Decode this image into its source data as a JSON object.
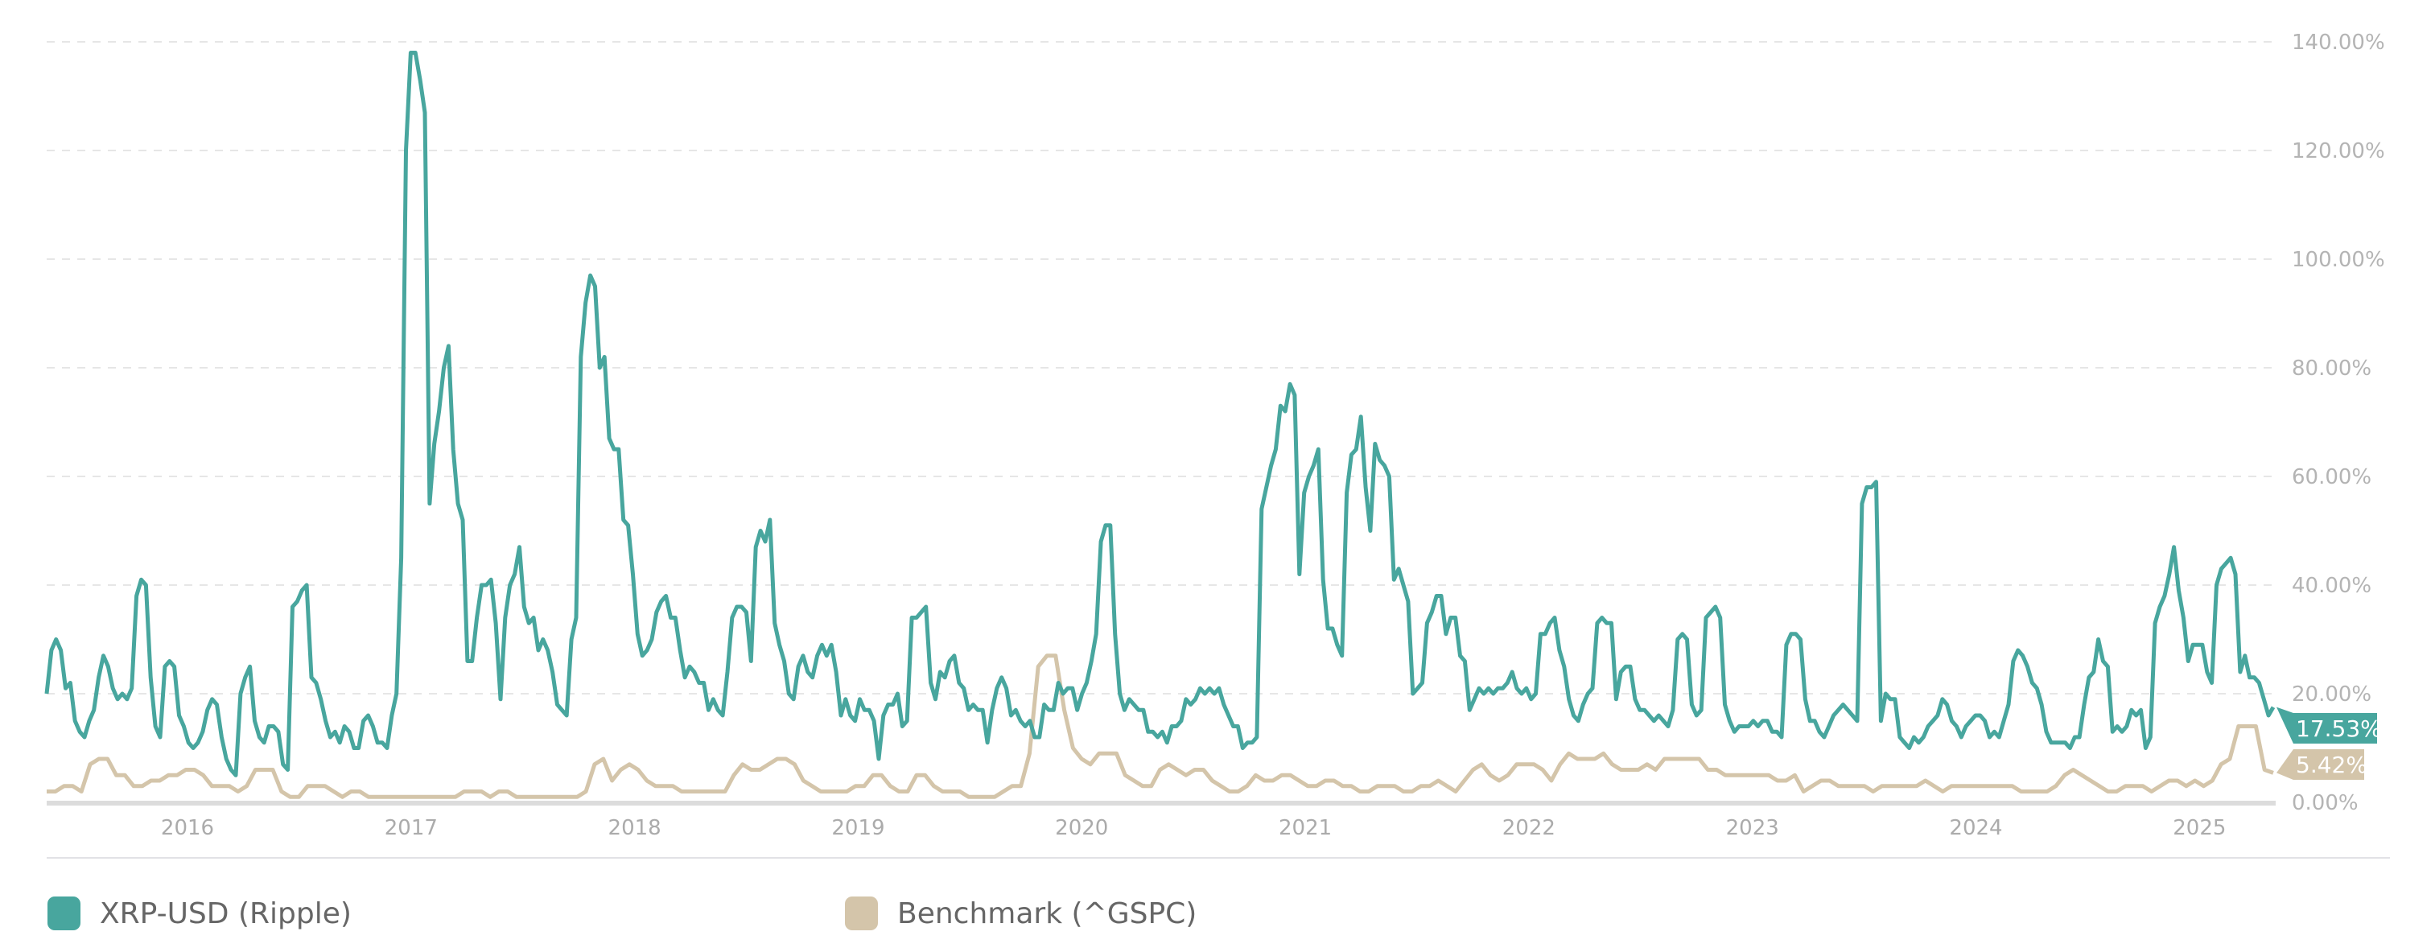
{
  "chart_data": {
    "type": "line",
    "title": "",
    "xlabel": "",
    "ylabel": "",
    "x_range": [
      2015.37,
      2025.33
    ],
    "ylim": [
      0,
      140
    ],
    "y_ticks": [
      "0.00%",
      "20.00%",
      "40.00%",
      "60.00%",
      "80.00%",
      "100.00%",
      "120.00%",
      "140.00%"
    ],
    "y_tick_values": [
      0,
      20,
      40,
      60,
      80,
      100,
      120,
      140
    ],
    "x_ticks": [
      "2016",
      "2017",
      "2018",
      "2019",
      "2020",
      "2021",
      "2022",
      "2023",
      "2024",
      "2025"
    ],
    "x_tick_values": [
      2016,
      2017,
      2018,
      2019,
      2020,
      2021,
      2022,
      2023,
      2024,
      2025
    ],
    "grid": "horizontal dashed",
    "legend_position": "bottom",
    "series": [
      {
        "name": "XRP-USD (Ripple)",
        "color": "#48a69e",
        "last_value_label": "17.53%",
        "values": [
          20,
          28,
          30,
          28,
          21,
          22,
          15,
          13,
          12,
          15,
          17,
          23,
          27,
          25,
          21,
          19,
          20,
          19,
          21,
          38,
          41,
          40,
          23,
          14,
          12,
          25,
          26,
          25,
          16,
          14,
          11,
          10,
          11,
          13,
          17,
          19,
          18,
          12,
          8,
          6,
          5,
          20,
          23,
          25,
          15,
          12,
          11,
          14,
          14,
          13,
          7,
          6,
          36,
          37,
          39,
          40,
          23,
          22,
          19,
          15,
          12,
          13,
          11,
          14,
          13,
          10,
          10,
          15,
          16,
          14,
          11,
          11,
          10,
          16,
          20,
          45,
          120,
          138,
          138,
          133,
          127,
          55,
          66,
          72,
          80,
          84,
          65,
          55,
          52,
          26,
          26,
          34,
          40,
          40,
          41,
          33,
          19,
          34,
          40,
          42,
          47,
          36,
          33,
          34,
          28,
          30,
          28,
          24,
          18,
          17,
          16,
          30,
          34,
          82,
          92,
          97,
          95,
          80,
          82,
          67,
          65,
          65,
          52,
          51,
          42,
          31,
          27,
          28,
          30,
          35,
          37,
          38,
          34,
          34,
          28,
          23,
          25,
          24,
          22,
          22,
          17,
          19,
          17,
          16,
          24,
          34,
          36,
          36,
          35,
          26,
          47,
          50,
          48,
          52,
          33,
          29,
          26,
          20,
          19,
          25,
          27,
          24,
          23,
          27,
          29,
          27,
          29,
          24,
          16,
          19,
          16,
          15,
          19,
          17,
          17,
          15,
          8,
          16,
          18,
          18,
          20,
          14,
          15,
          34,
          34,
          35,
          36,
          22,
          19,
          24,
          23,
          26,
          27,
          22,
          21,
          17,
          18,
          17,
          17,
          11,
          17,
          21,
          23,
          21,
          16,
          17,
          15,
          14,
          15,
          12,
          12,
          18,
          17,
          17,
          22,
          20,
          21,
          21,
          17,
          20,
          22,
          26,
          31,
          48,
          51,
          51,
          31,
          20,
          17,
          19,
          18,
          17,
          17,
          13,
          13,
          12,
          13,
          11,
          14,
          14,
          15,
          19,
          18,
          19,
          21,
          20,
          21,
          20,
          21,
          18,
          16,
          14,
          14,
          10,
          11,
          11,
          12,
          54,
          58,
          62,
          65,
          73,
          72,
          77,
          75,
          42,
          57,
          60,
          62,
          65,
          41,
          32,
          32,
          29,
          27,
          57,
          64,
          65,
          71,
          58,
          50,
          66,
          63,
          62,
          60,
          41,
          43,
          40,
          37,
          20,
          21,
          22,
          33,
          35,
          38,
          38,
          31,
          34,
          34,
          27,
          26,
          17,
          19,
          21,
          20,
          21,
          20,
          21,
          21,
          22,
          24,
          21,
          20,
          21,
          19,
          20,
          31,
          31,
          33,
          34,
          28,
          25,
          19,
          16,
          15,
          18,
          20,
          21,
          33,
          34,
          33,
          33,
          19,
          24,
          25,
          25,
          19,
          17,
          17,
          16,
          15,
          16,
          15,
          14,
          17,
          30,
          31,
          30,
          18,
          16,
          17,
          34,
          35,
          36,
          34,
          18,
          15,
          13,
          14,
          14,
          14,
          15,
          14,
          15,
          15,
          13,
          13,
          12,
          29,
          31,
          31,
          30,
          19,
          15,
          15,
          13,
          12,
          14,
          16,
          17,
          18,
          17,
          16,
          15,
          55,
          58,
          58,
          59,
          15,
          20,
          19,
          19,
          12,
          11,
          10,
          12,
          11,
          12,
          14,
          15,
          16,
          19,
          18,
          15,
          14,
          12,
          14,
          15,
          16,
          16,
          15,
          12,
          13,
          12,
          15,
          18,
          26,
          28,
          27,
          25,
          22,
          21,
          18,
          13,
          11,
          11,
          11,
          11,
          10,
          12,
          12,
          18,
          23,
          24,
          30,
          26,
          25,
          13,
          14,
          13,
          14,
          17,
          16,
          17,
          10,
          12,
          33,
          36,
          38,
          42,
          47,
          39,
          34,
          26,
          29,
          29,
          29,
          24,
          22,
          40,
          43,
          44,
          45,
          42,
          24,
          27,
          23,
          23,
          22,
          19,
          16,
          17.53
        ]
      },
      {
        "name": "Benchmark (^GSPC)",
        "color": "#d4c5aa",
        "last_value_label": "5.42%",
        "values": [
          2,
          2,
          3,
          3,
          2,
          7,
          8,
          8,
          5,
          5,
          3,
          3,
          4,
          4,
          5,
          5,
          6,
          6,
          5,
          3,
          3,
          3,
          2,
          3,
          6,
          6,
          6,
          2,
          1,
          1,
          3,
          3,
          3,
          2,
          1,
          2,
          2,
          1,
          1,
          1,
          1,
          1,
          1,
          1,
          1,
          1,
          1,
          1,
          2,
          2,
          2,
          1,
          2,
          2,
          1,
          1,
          1,
          1,
          1,
          1,
          1,
          1,
          2,
          7,
          8,
          4,
          6,
          7,
          6,
          4,
          3,
          3,
          3,
          2,
          2,
          2,
          2,
          2,
          2,
          5,
          7,
          6,
          6,
          7,
          8,
          8,
          7,
          4,
          3,
          2,
          2,
          2,
          2,
          3,
          3,
          5,
          5,
          3,
          2,
          2,
          5,
          5,
          3,
          2,
          2,
          2,
          1,
          1,
          1,
          1,
          2,
          3,
          3,
          9,
          25,
          27,
          27,
          17,
          10,
          8,
          7,
          9,
          9,
          9,
          5,
          4,
          3,
          3,
          6,
          7,
          6,
          5,
          6,
          6,
          4,
          3,
          2,
          2,
          3,
          5,
          4,
          4,
          5,
          5,
          4,
          3,
          3,
          4,
          4,
          3,
          3,
          2,
          2,
          3,
          3,
          3,
          2,
          2,
          3,
          3,
          4,
          3,
          2,
          4,
          6,
          7,
          5,
          4,
          5,
          7,
          7,
          7,
          6,
          4,
          7,
          9,
          8,
          8,
          8,
          9,
          7,
          6,
          6,
          6,
          7,
          6,
          8,
          8,
          8,
          8,
          8,
          6,
          6,
          5,
          5,
          5,
          5,
          5,
          5,
          4,
          4,
          5,
          2,
          3,
          4,
          4,
          3,
          3,
          3,
          3,
          2,
          3,
          3,
          3,
          3,
          3,
          4,
          3,
          2,
          3,
          3,
          3,
          3,
          3,
          3,
          3,
          3,
          2,
          2,
          2,
          2,
          3,
          5,
          6,
          5,
          4,
          3,
          2,
          2,
          3,
          3,
          3,
          2,
          3,
          4,
          4,
          3,
          4,
          3,
          4,
          7,
          8,
          14,
          14,
          14,
          6,
          5.42
        ]
      }
    ]
  }
}
